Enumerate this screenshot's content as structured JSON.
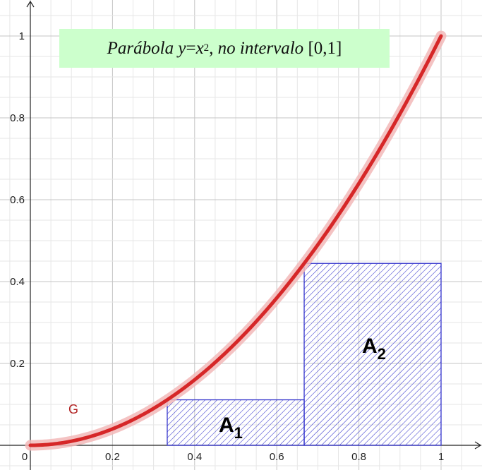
{
  "chart_data": {
    "type": "area",
    "title": {
      "prefix": "Parábola ",
      "var_y": "y",
      "equals": " = ",
      "var_x": "x",
      "exponent": "2",
      "middle": ", no intervalo ",
      "interval": "[0,1]"
    },
    "xlim": [
      0,
      1
    ],
    "ylim": [
      0,
      1
    ],
    "x_ticks": [
      "0",
      "0.2",
      "0.4",
      "0.6",
      "0.8",
      "1"
    ],
    "y_ticks": [
      "0.2",
      "0.4",
      "0.6",
      "0.8",
      "1"
    ],
    "grid": true,
    "curve": {
      "name": "G",
      "expression": "y = x^2",
      "domain": [
        0,
        1
      ],
      "color": "#d62728"
    },
    "rectangles": [
      {
        "name": "A",
        "subscript": "1",
        "x": [
          0.3333,
          0.6667
        ],
        "height": 0.1111,
        "color": "#3333cc"
      },
      {
        "name": "A",
        "subscript": "2",
        "x": [
          0.6667,
          1.0
        ],
        "height": 0.4444,
        "color": "#3333cc"
      }
    ]
  }
}
